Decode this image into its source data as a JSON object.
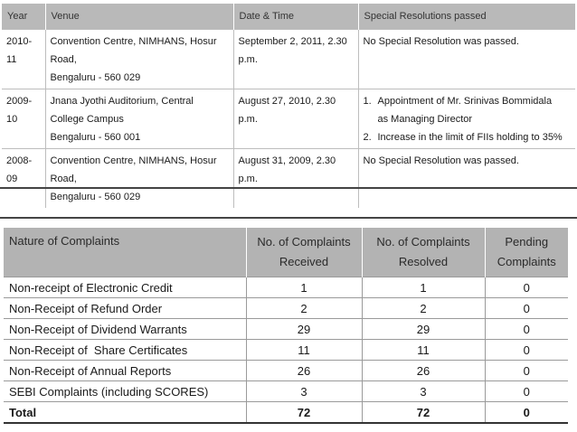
{
  "agm": {
    "headers": {
      "year": "Year",
      "venue": "Venue",
      "datetime": "Date & Time",
      "resolutions": "Special Resolutions passed"
    },
    "rows": [
      {
        "year": "2010-11",
        "venue": [
          "Convention Centre, NIMHANS, Hosur Road,",
          "Bengaluru - 560 029"
        ],
        "datetime": "September 2, 2011, 2.30 p.m.",
        "resolution": "No Special Resolution was passed."
      },
      {
        "year": "2009-10",
        "venue": [
          "Jnana Jyothi Auditorium, Central College Campus",
          "Bengaluru - 560 001"
        ],
        "datetime": "August 27, 2010, 2.30 p.m.",
        "resolutions": [
          {
            "num": "1.",
            "lines": [
              "Appointment of Mr. Srinivas Bommidala",
              "as Managing Director"
            ]
          },
          {
            "num": "2.",
            "lines": [
              "Increase in the limit of FIIs holding to 35%"
            ]
          }
        ]
      },
      {
        "year": "2008-09",
        "venue": [
          "Convention Centre, NIMHANS, Hosur Road,",
          "Bengaluru - 560 029"
        ],
        "datetime": "August 31, 2009, 2.30 p.m.",
        "resolution": "No Special Resolution was passed."
      }
    ]
  },
  "complaints": {
    "headers": {
      "nature": "Nature of Complaints",
      "received": [
        "No. of Complaints",
        "Received"
      ],
      "resolved": [
        "No. of Complaints",
        "Resolved"
      ],
      "pending": [
        "Pending",
        "Complaints"
      ]
    },
    "rows": [
      {
        "nature": "Non-receipt of Electronic Credit",
        "received": "1",
        "resolved": "1",
        "pending": "0"
      },
      {
        "nature": "Non-Receipt of Refund Order",
        "received": "2",
        "resolved": "2",
        "pending": "0"
      },
      {
        "nature": "Non-Receipt of Dividend Warrants",
        "received": "29",
        "resolved": "29",
        "pending": "0"
      },
      {
        "nature": "Non-Receipt of  Share Certificates",
        "received": "11",
        "resolved": "11",
        "pending": "0"
      },
      {
        "nature": "Non-Receipt of Annual Reports",
        "received": "26",
        "resolved": "26",
        "pending": "0"
      },
      {
        "nature": "SEBI Complaints (including SCORES)",
        "received": "3",
        "resolved": "3",
        "pending": "0"
      }
    ],
    "total": {
      "label": "Total",
      "received": "72",
      "resolved": "72",
      "pending": "0"
    }
  }
}
